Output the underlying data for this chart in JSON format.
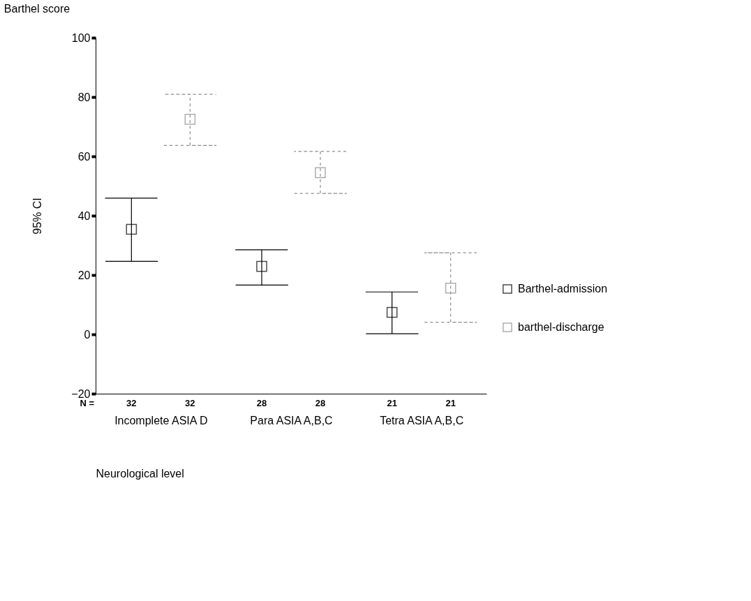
{
  "chart_data": {
    "type": "scatter",
    "title": "Barthel score",
    "xlabel": "Neurological level",
    "ylabel": "95% CI",
    "categories": [
      "Incomplete ASIA D",
      "Para ASIA A,B,C",
      "Tetra ASIA A,B,C"
    ],
    "series": [
      {
        "name": "Barthel-admission",
        "color": "#000000",
        "line_style": "solid",
        "values": [
          35.4,
          22.9,
          7.4
        ],
        "errors": [
          [
            24.6,
            45.9
          ],
          [
            16.6,
            28.5
          ],
          [
            0.2,
            14.3
          ]
        ]
      },
      {
        "name": "barthel-discharge",
        "color": "#8c8c8c",
        "line_style": "dashed",
        "values": [
          72.5,
          54.5,
          15.6
        ],
        "errors": [
          [
            63.7,
            80.9
          ],
          [
            47.5,
            61.7
          ],
          [
            4.1,
            27.5
          ]
        ]
      }
    ],
    "ylim": [
      -20,
      100
    ],
    "yticks": [
      -20,
      0,
      20,
      40,
      60,
      80,
      100
    ],
    "grid": false,
    "legend": "right",
    "marker": "square",
    "annotations": [
      "N =",
      "32",
      "32",
      "28",
      "28",
      "21",
      "21"
    ]
  }
}
